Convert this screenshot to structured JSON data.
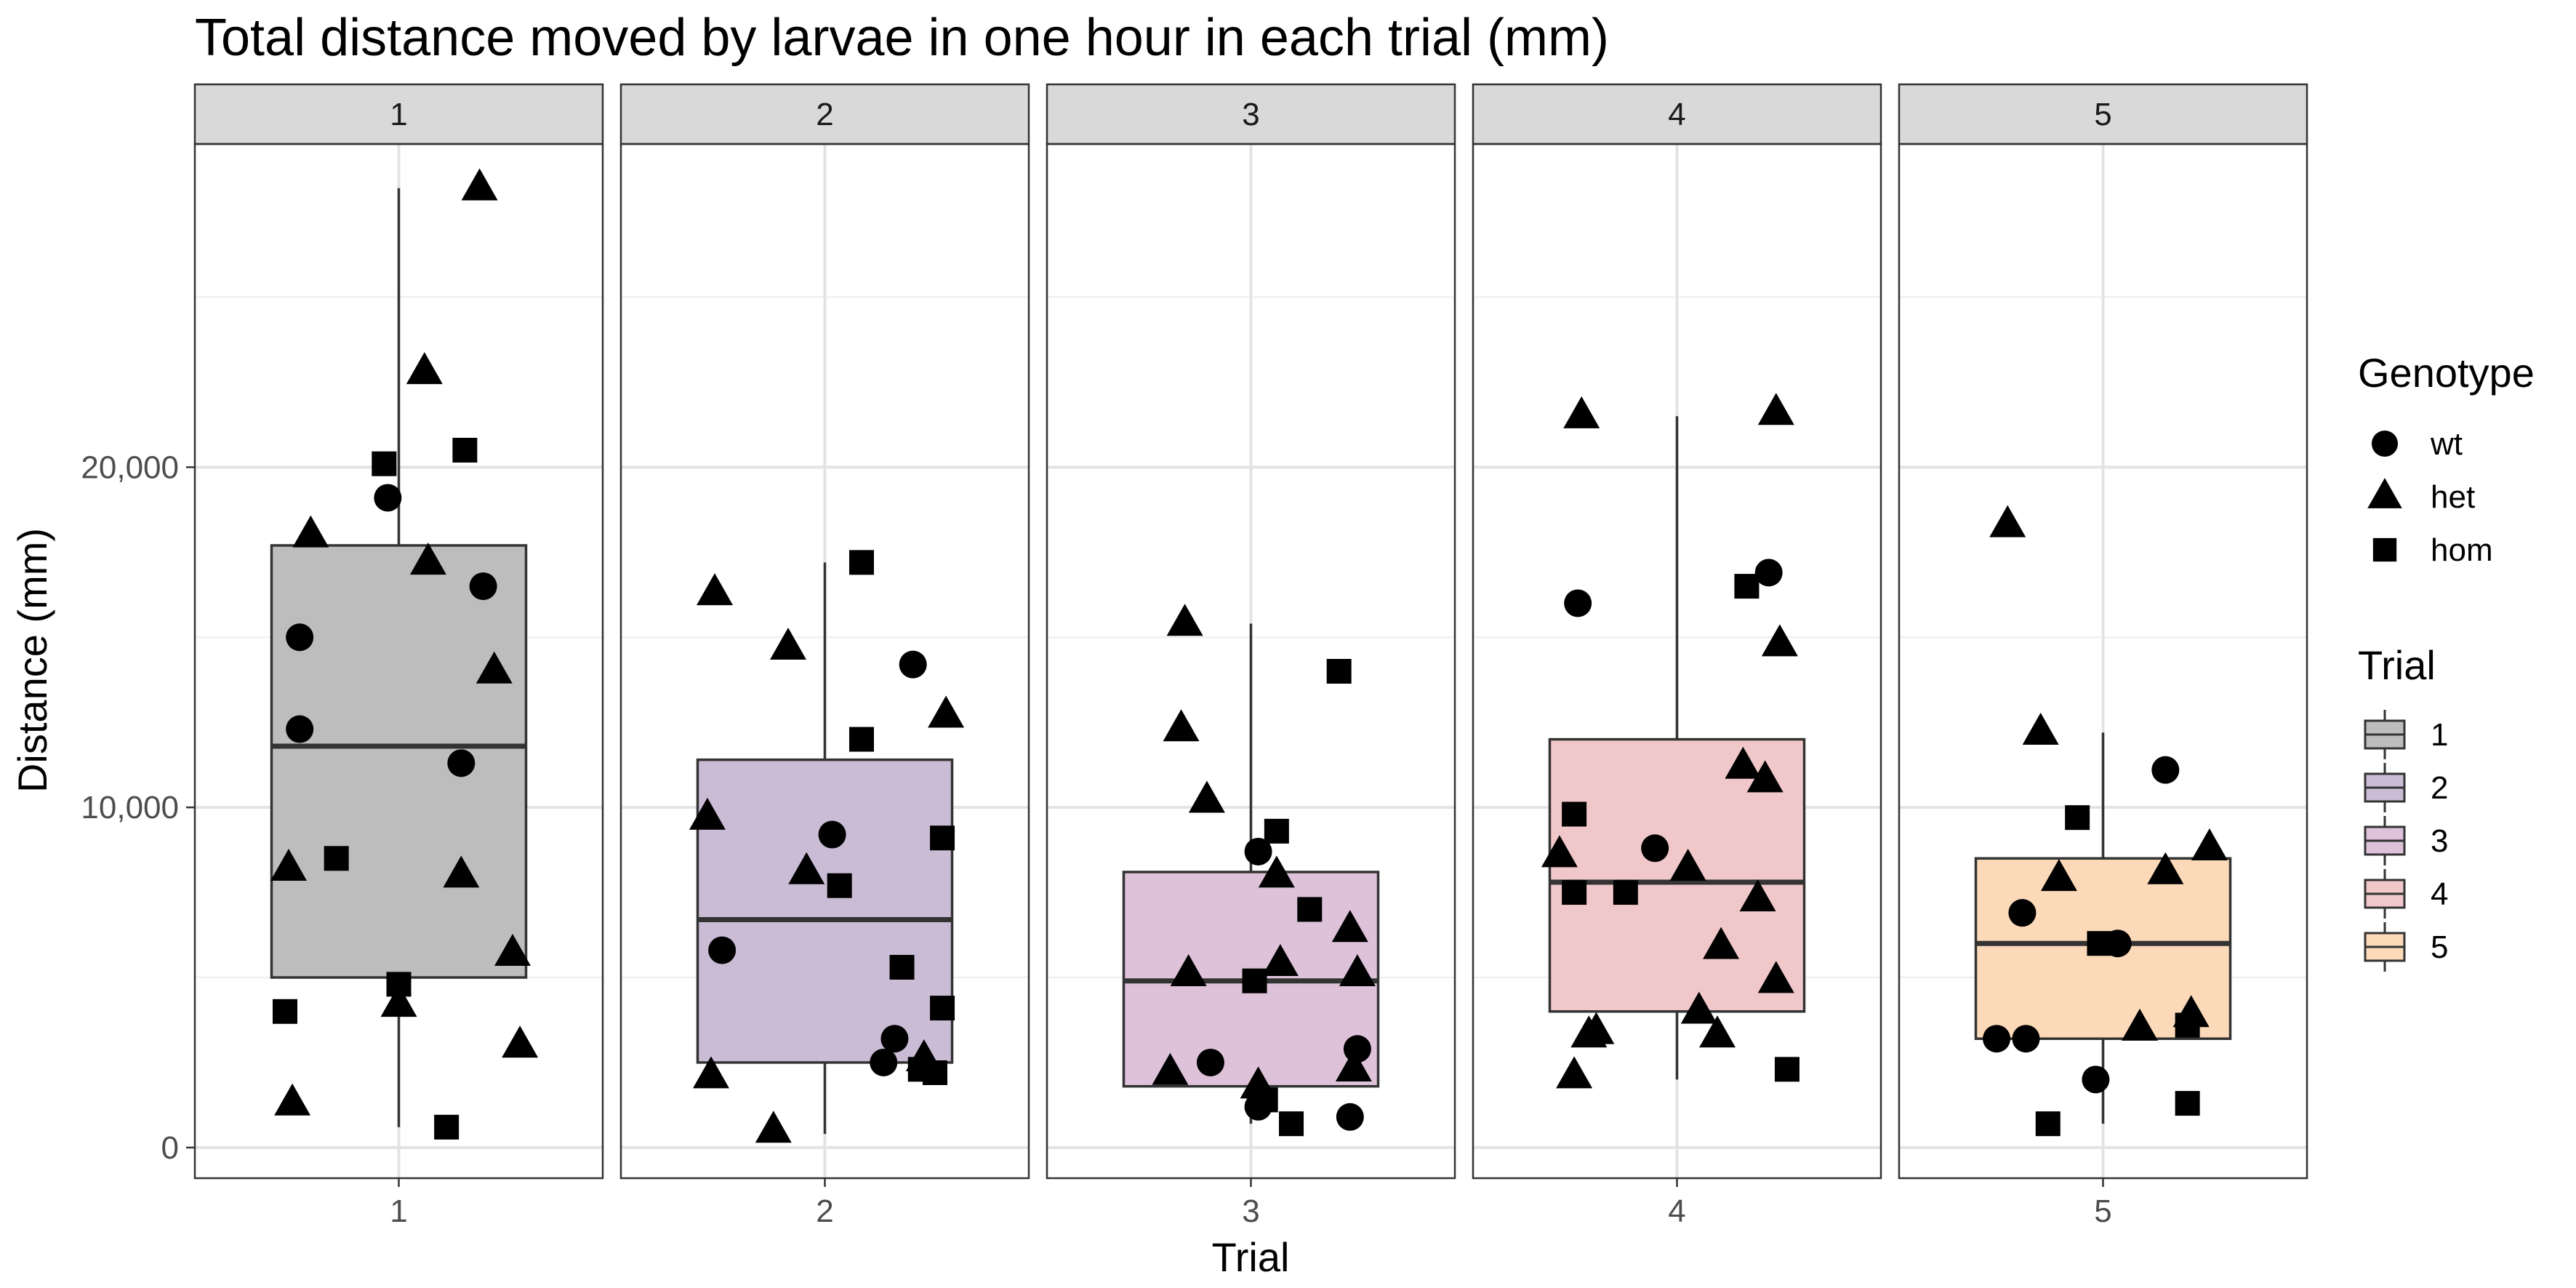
{
  "chart_data": {
    "type": "boxplot",
    "title": "Total distance moved by larvae in one hour in each trial (mm)",
    "xlabel": "Trial",
    "ylabel": "Distance (mm)",
    "ylim": [
      -900,
      29500
    ],
    "yticks": [
      0,
      10000,
      20000
    ],
    "ytick_labels": [
      "0",
      "10,000",
      "20,000"
    ],
    "facets": [
      "1",
      "2",
      "3",
      "4",
      "5"
    ],
    "grid": true,
    "legend_position": "right",
    "legends": {
      "genotype": {
        "title": "Genotype",
        "items": [
          {
            "label": "wt",
            "shape": "circle"
          },
          {
            "label": "het",
            "shape": "triangle"
          },
          {
            "label": "hom",
            "shape": "square"
          }
        ]
      },
      "trial": {
        "title": "Trial",
        "items": [
          {
            "label": "1",
            "color": "#bdbdbd"
          },
          {
            "label": "2",
            "color": "#cbbcd6"
          },
          {
            "label": "3",
            "color": "#ddc2d9"
          },
          {
            "label": "4",
            "color": "#f1c8ca"
          },
          {
            "label": "5",
            "color": "#fcd9b8"
          }
        ]
      }
    },
    "boxes": [
      {
        "trial": "1",
        "min": 600,
        "q1": 5000,
        "median": 11800,
        "q3": 17700,
        "max": 28200
      },
      {
        "trial": "2",
        "min": 400,
        "q1": 2500,
        "median": 6700,
        "q3": 11400,
        "max": 17200
      },
      {
        "trial": "3",
        "min": 700,
        "q1": 1800,
        "median": 4900,
        "q3": 8100,
        "max": 15400
      },
      {
        "trial": "4",
        "min": 2000,
        "q1": 4000,
        "median": 7800,
        "q3": 12000,
        "max": 21500
      },
      {
        "trial": "5",
        "min": 700,
        "q1": 3200,
        "median": 6000,
        "q3": 8500,
        "max": 12200
      }
    ],
    "points": [
      {
        "trial": "1",
        "genotype": "wt",
        "x": 0.97,
        "y": 19100
      },
      {
        "trial": "1",
        "genotype": "wt",
        "x": 1.23,
        "y": 16500
      },
      {
        "trial": "1",
        "genotype": "wt",
        "x": 0.73,
        "y": 15000
      },
      {
        "trial": "1",
        "genotype": "wt",
        "x": 0.73,
        "y": 12300
      },
      {
        "trial": "1",
        "genotype": "wt",
        "x": 1.17,
        "y": 11300
      },
      {
        "trial": "1",
        "genotype": "het",
        "x": 1.22,
        "y": 28200
      },
      {
        "trial": "1",
        "genotype": "het",
        "x": 1.07,
        "y": 22800
      },
      {
        "trial": "1",
        "genotype": "het",
        "x": 0.76,
        "y": 18000
      },
      {
        "trial": "1",
        "genotype": "het",
        "x": 1.08,
        "y": 17200
      },
      {
        "trial": "1",
        "genotype": "het",
        "x": 1.26,
        "y": 14000
      },
      {
        "trial": "1",
        "genotype": "het",
        "x": 0.7,
        "y": 8200
      },
      {
        "trial": "1",
        "genotype": "het",
        "x": 1.17,
        "y": 8000
      },
      {
        "trial": "1",
        "genotype": "het",
        "x": 1.31,
        "y": 5700
      },
      {
        "trial": "1",
        "genotype": "het",
        "x": 1.0,
        "y": 4200
      },
      {
        "trial": "1",
        "genotype": "het",
        "x": 1.33,
        "y": 3000
      },
      {
        "trial": "1",
        "genotype": "het",
        "x": 0.71,
        "y": 1300
      },
      {
        "trial": "1",
        "genotype": "hom",
        "x": 0.96,
        "y": 20100
      },
      {
        "trial": "1",
        "genotype": "hom",
        "x": 1.18,
        "y": 20500
      },
      {
        "trial": "1",
        "genotype": "hom",
        "x": 0.83,
        "y": 8500
      },
      {
        "trial": "1",
        "genotype": "hom",
        "x": 1.0,
        "y": 4800
      },
      {
        "trial": "1",
        "genotype": "hom",
        "x": 0.69,
        "y": 4000
      },
      {
        "trial": "1",
        "genotype": "hom",
        "x": 1.13,
        "y": 600
      },
      {
        "trial": "2",
        "genotype": "wt",
        "x": 2.24,
        "y": 14200
      },
      {
        "trial": "2",
        "genotype": "wt",
        "x": 2.02,
        "y": 9200
      },
      {
        "trial": "2",
        "genotype": "wt",
        "x": 1.72,
        "y": 5800
      },
      {
        "trial": "2",
        "genotype": "wt",
        "x": 2.19,
        "y": 3200
      },
      {
        "trial": "2",
        "genotype": "wt",
        "x": 2.16,
        "y": 2500
      },
      {
        "trial": "2",
        "genotype": "het",
        "x": 1.7,
        "y": 16300
      },
      {
        "trial": "2",
        "genotype": "het",
        "x": 1.9,
        "y": 14700
      },
      {
        "trial": "2",
        "genotype": "het",
        "x": 2.33,
        "y": 12700
      },
      {
        "trial": "2",
        "genotype": "het",
        "x": 1.68,
        "y": 9700
      },
      {
        "trial": "2",
        "genotype": "het",
        "x": 1.95,
        "y": 8100
      },
      {
        "trial": "2",
        "genotype": "het",
        "x": 2.27,
        "y": 2600
      },
      {
        "trial": "2",
        "genotype": "het",
        "x": 1.69,
        "y": 2100
      },
      {
        "trial": "2",
        "genotype": "het",
        "x": 1.86,
        "y": 500
      },
      {
        "trial": "2",
        "genotype": "hom",
        "x": 2.1,
        "y": 17200
      },
      {
        "trial": "2",
        "genotype": "hom",
        "x": 2.1,
        "y": 12000
      },
      {
        "trial": "2",
        "genotype": "hom",
        "x": 2.32,
        "y": 9100
      },
      {
        "trial": "2",
        "genotype": "hom",
        "x": 2.04,
        "y": 7700
      },
      {
        "trial": "2",
        "genotype": "hom",
        "x": 2.21,
        "y": 5300
      },
      {
        "trial": "2",
        "genotype": "hom",
        "x": 2.32,
        "y": 4100
      },
      {
        "trial": "2",
        "genotype": "hom",
        "x": 2.26,
        "y": 2300
      },
      {
        "trial": "2",
        "genotype": "hom",
        "x": 2.3,
        "y": 2200
      },
      {
        "trial": "3",
        "genotype": "wt",
        "x": 3.02,
        "y": 8700
      },
      {
        "trial": "3",
        "genotype": "wt",
        "x": 2.89,
        "y": 2500
      },
      {
        "trial": "3",
        "genotype": "wt",
        "x": 3.29,
        "y": 2900
      },
      {
        "trial": "3",
        "genotype": "wt",
        "x": 3.02,
        "y": 1200
      },
      {
        "trial": "3",
        "genotype": "wt",
        "x": 3.27,
        "y": 900
      },
      {
        "trial": "3",
        "genotype": "het",
        "x": 2.82,
        "y": 15400
      },
      {
        "trial": "3",
        "genotype": "het",
        "x": 2.81,
        "y": 12300
      },
      {
        "trial": "3",
        "genotype": "het",
        "x": 2.88,
        "y": 10200
      },
      {
        "trial": "3",
        "genotype": "het",
        "x": 3.07,
        "y": 8000
      },
      {
        "trial": "3",
        "genotype": "het",
        "x": 3.27,
        "y": 6400
      },
      {
        "trial": "3",
        "genotype": "het",
        "x": 3.08,
        "y": 5400
      },
      {
        "trial": "3",
        "genotype": "het",
        "x": 2.83,
        "y": 5100
      },
      {
        "trial": "3",
        "genotype": "het",
        "x": 3.29,
        "y": 5100
      },
      {
        "trial": "3",
        "genotype": "het",
        "x": 3.28,
        "y": 2300
      },
      {
        "trial": "3",
        "genotype": "het",
        "x": 2.78,
        "y": 2200
      },
      {
        "trial": "3",
        "genotype": "het",
        "x": 3.02,
        "y": 1800
      },
      {
        "trial": "3",
        "genotype": "hom",
        "x": 3.24,
        "y": 14000
      },
      {
        "trial": "3",
        "genotype": "hom",
        "x": 3.07,
        "y": 9300
      },
      {
        "trial": "3",
        "genotype": "hom",
        "x": 3.16,
        "y": 7000
      },
      {
        "trial": "3",
        "genotype": "hom",
        "x": 3.01,
        "y": 4900
      },
      {
        "trial": "3",
        "genotype": "hom",
        "x": 3.04,
        "y": 1400
      },
      {
        "trial": "3",
        "genotype": "hom",
        "x": 3.11,
        "y": 700
      },
      {
        "trial": "4",
        "genotype": "wt",
        "x": 4.25,
        "y": 16900
      },
      {
        "trial": "4",
        "genotype": "wt",
        "x": 3.73,
        "y": 16000
      },
      {
        "trial": "4",
        "genotype": "wt",
        "x": 3.94,
        "y": 8800
      },
      {
        "trial": "4",
        "genotype": "het",
        "x": 3.74,
        "y": 21500
      },
      {
        "trial": "4",
        "genotype": "het",
        "x": 4.27,
        "y": 21600
      },
      {
        "trial": "4",
        "genotype": "het",
        "x": 4.28,
        "y": 14800
      },
      {
        "trial": "4",
        "genotype": "het",
        "x": 4.18,
        "y": 11200
      },
      {
        "trial": "4",
        "genotype": "het",
        "x": 4.24,
        "y": 10800
      },
      {
        "trial": "4",
        "genotype": "het",
        "x": 3.68,
        "y": 8600
      },
      {
        "trial": "4",
        "genotype": "het",
        "x": 4.03,
        "y": 8200
      },
      {
        "trial": "4",
        "genotype": "het",
        "x": 4.22,
        "y": 7300
      },
      {
        "trial": "4",
        "genotype": "het",
        "x": 4.12,
        "y": 5900
      },
      {
        "trial": "4",
        "genotype": "het",
        "x": 4.27,
        "y": 4900
      },
      {
        "trial": "4",
        "genotype": "het",
        "x": 4.06,
        "y": 4000
      },
      {
        "trial": "4",
        "genotype": "het",
        "x": 3.78,
        "y": 3400
      },
      {
        "trial": "4",
        "genotype": "het",
        "x": 3.76,
        "y": 3300
      },
      {
        "trial": "4",
        "genotype": "het",
        "x": 4.11,
        "y": 3300
      },
      {
        "trial": "4",
        "genotype": "het",
        "x": 3.72,
        "y": 2100
      },
      {
        "trial": "4",
        "genotype": "hom",
        "x": 3.72,
        "y": 9800
      },
      {
        "trial": "4",
        "genotype": "hom",
        "x": 4.19,
        "y": 16500
      },
      {
        "trial": "4",
        "genotype": "hom",
        "x": 3.72,
        "y": 7500
      },
      {
        "trial": "4",
        "genotype": "hom",
        "x": 3.86,
        "y": 7500
      },
      {
        "trial": "4",
        "genotype": "hom",
        "x": 4.3,
        "y": 2300
      },
      {
        "trial": "5",
        "genotype": "wt",
        "x": 5.17,
        "y": 11100
      },
      {
        "trial": "5",
        "genotype": "wt",
        "x": 4.78,
        "y": 6900
      },
      {
        "trial": "5",
        "genotype": "wt",
        "x": 5.04,
        "y": 6000
      },
      {
        "trial": "5",
        "genotype": "wt",
        "x": 4.71,
        "y": 3200
      },
      {
        "trial": "5",
        "genotype": "wt",
        "x": 4.79,
        "y": 3200
      },
      {
        "trial": "5",
        "genotype": "wt",
        "x": 4.98,
        "y": 2000
      },
      {
        "trial": "5",
        "genotype": "het",
        "x": 4.74,
        "y": 18300
      },
      {
        "trial": "5",
        "genotype": "het",
        "x": 4.83,
        "y": 12200
      },
      {
        "trial": "5",
        "genotype": "het",
        "x": 4.88,
        "y": 7900
      },
      {
        "trial": "5",
        "genotype": "het",
        "x": 5.17,
        "y": 8100
      },
      {
        "trial": "5",
        "genotype": "het",
        "x": 5.29,
        "y": 8800
      },
      {
        "trial": "5",
        "genotype": "het",
        "x": 5.24,
        "y": 3900
      },
      {
        "trial": "5",
        "genotype": "het",
        "x": 5.1,
        "y": 3500
      },
      {
        "trial": "5",
        "genotype": "hom",
        "x": 4.93,
        "y": 9700
      },
      {
        "trial": "5",
        "genotype": "hom",
        "x": 4.99,
        "y": 6000
      },
      {
        "trial": "5",
        "genotype": "hom",
        "x": 5.23,
        "y": 3600
      },
      {
        "trial": "5",
        "genotype": "hom",
        "x": 5.23,
        "y": 1300
      },
      {
        "trial": "5",
        "genotype": "hom",
        "x": 4.85,
        "y": 700
      }
    ]
  }
}
